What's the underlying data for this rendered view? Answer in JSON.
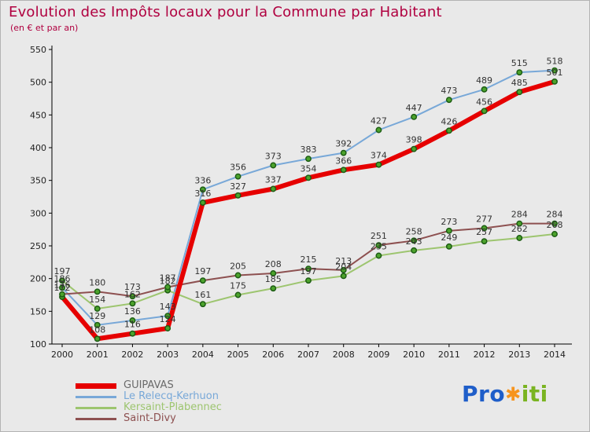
{
  "header": {
    "title_color": "#b00040",
    "background_color": "#e9e9e9"
  },
  "chart_data": {
    "type": "line",
    "title": "Evolution des Impôts locaux pour la Commune par Habitant",
    "subtitle": "(en € et par an)",
    "xlabel": "",
    "ylabel": "",
    "x": [
      2000,
      2001,
      2002,
      2003,
      2004,
      2005,
      2006,
      2007,
      2008,
      2009,
      2010,
      2011,
      2012,
      2013,
      2014
    ],
    "ylim": [
      100,
      550
    ],
    "ytick_step": 50,
    "grid": false,
    "legend_position": "bottom-left",
    "axis_color": "#000000",
    "tick_label_color": "#222222",
    "value_label_color": "#333333",
    "marker": {
      "fill": "#4ca32c",
      "stroke": "#1d5c14"
    },
    "series": [
      {
        "name": "GUIPAVAS",
        "color": "#e60000",
        "legend_color": "#6b6b6b",
        "line_width": 6,
        "values": [
          172,
          108,
          116,
          124,
          316,
          327,
          337,
          354,
          366,
          374,
          398,
          426,
          456,
          485,
          501
        ]
      },
      {
        "name": "Le Relecq-Kerhuon",
        "color": "#78a8d8",
        "legend_color": "#78a8d8",
        "line_width": 2,
        "values": [
          186,
          129,
          136,
          143,
          336,
          356,
          373,
          383,
          392,
          427,
          447,
          473,
          489,
          515,
          518
        ]
      },
      {
        "name": "Kersaint-Plabennec",
        "color": "#9dc56f",
        "legend_color": "#9dc56f",
        "line_width": 2,
        "values": [
          197,
          154,
          162,
          182,
          161,
          175,
          185,
          197,
          204,
          235,
          243,
          249,
          257,
          262,
          268
        ]
      },
      {
        "name": "Saint-Divy",
        "color": "#8d5050",
        "legend_color": "#8d5050",
        "line_width": 2,
        "values": [
          176,
          180,
          173,
          187,
          197,
          205,
          208,
          215,
          213,
          251,
          258,
          273,
          277,
          284,
          284
        ]
      }
    ]
  },
  "logo": {
    "part1": "Pro",
    "star": "✱",
    "part2": "iti",
    "part1_color": "#1f5ec9",
    "star_color": "#f7941d",
    "part2_color": "#7ab421"
  }
}
